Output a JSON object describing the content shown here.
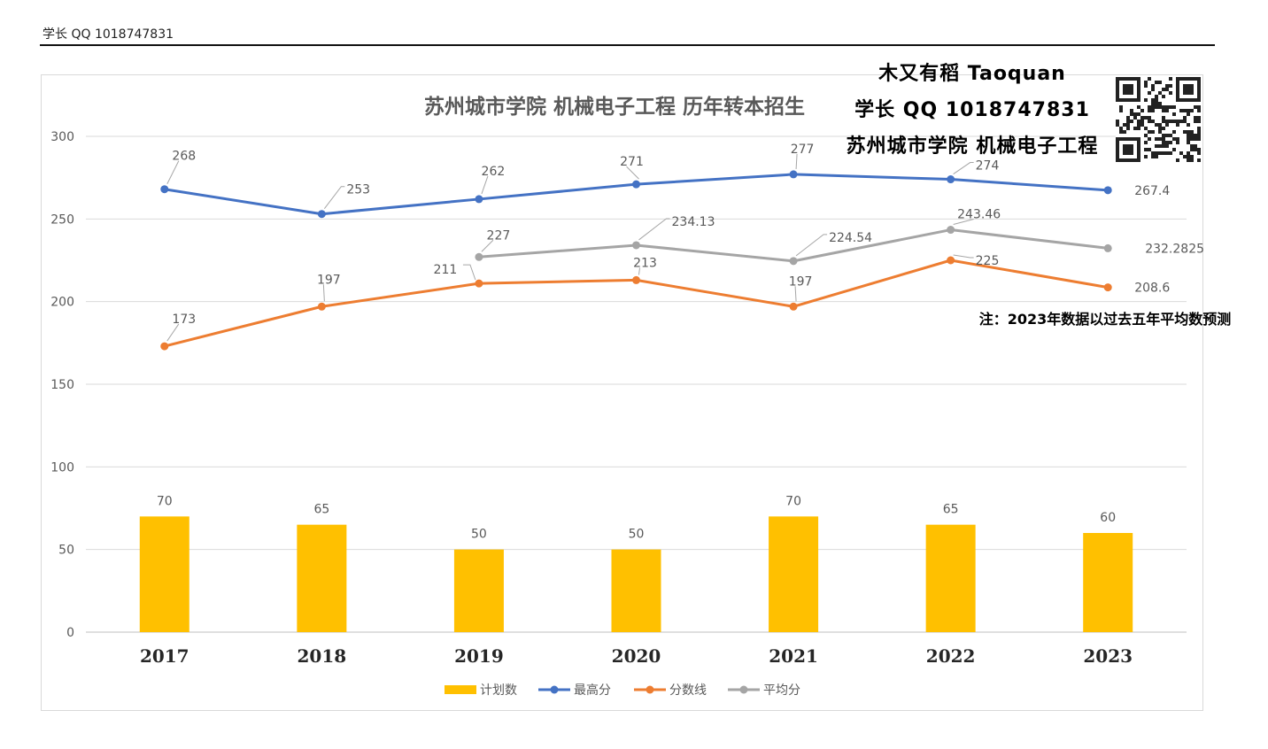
{
  "header": {
    "text": "学长 QQ 1018747831"
  },
  "watermark": {
    "line1": "木又有稻 Taoquan",
    "line2": "学长 QQ 1018747831",
    "line3": "苏州城市学院 机械电子工程"
  },
  "note": "注：2023年数据以过去五年平均数预测",
  "chart_data": {
    "type": "bar",
    "title": "苏州城市学院 机械电子工程 历年转本招生",
    "categories": [
      "2017",
      "2018",
      "2019",
      "2020",
      "2021",
      "2022",
      "2023"
    ],
    "ylim": [
      0,
      300
    ],
    "yticks": [
      "0",
      "50",
      "100",
      "150",
      "200",
      "250",
      "300"
    ],
    "grid": true,
    "legend_position": "bottom",
    "bar_series": {
      "name": "计划数",
      "color": "#ffc000",
      "values": [
        70,
        65,
        50,
        50,
        70,
        65,
        60
      ],
      "labels": [
        "70",
        "65",
        "50",
        "50",
        "70",
        "65",
        "60"
      ]
    },
    "line_series": [
      {
        "name": "最高分",
        "color": "#4472c4",
        "values": [
          268,
          253,
          262,
          271,
          277,
          274,
          267.4
        ],
        "labels": [
          "268",
          "253",
          "262",
          "271",
          "277",
          "274",
          "267.4"
        ]
      },
      {
        "name": "分数线",
        "color": "#ed7d31",
        "values": [
          173,
          197,
          211,
          213,
          197,
          225,
          208.6
        ],
        "labels": [
          "173",
          "197",
          "211",
          "213",
          "197",
          "225",
          "208.6"
        ]
      },
      {
        "name": "平均分",
        "color": "#a5a5a5",
        "values": [
          null,
          null,
          227,
          234.13,
          224.54,
          243.46,
          232.2825
        ],
        "labels": [
          "",
          "",
          "227",
          "234.13",
          "224.54",
          "243.46",
          "232.2825"
        ]
      }
    ]
  }
}
